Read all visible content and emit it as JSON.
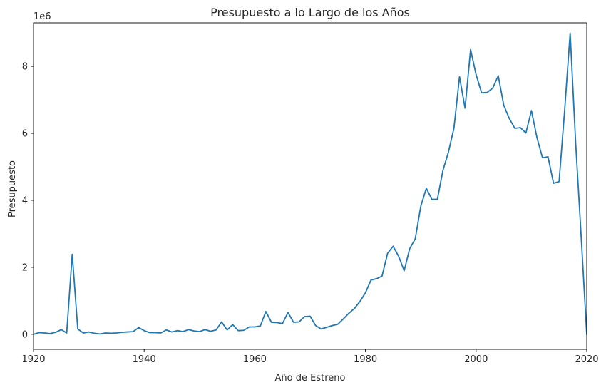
{
  "chart_data": {
    "type": "line",
    "title": "Presupuesto a lo Largo de los Años",
    "xlabel": "Año de Estreno",
    "ylabel": "Presupuesto",
    "y_offset_label": "1e6",
    "xlim": [
      1920,
      2020
    ],
    "ylim": [
      -0.45,
      9.3
    ],
    "y_multiplier": 1000000,
    "x_ticks": [
      1920,
      1940,
      1960,
      1980,
      2000,
      2020
    ],
    "y_ticks": [
      0,
      2,
      4,
      6,
      8
    ],
    "grid": false,
    "line_color": "#1f77b4",
    "series": [
      {
        "x": [
          1920,
          1921,
          1922,
          1923,
          1924,
          1925,
          1926,
          1927,
          1928,
          1929,
          1930,
          1931,
          1932,
          1933,
          1934,
          1935,
          1936,
          1937,
          1938,
          1939,
          1940,
          1941,
          1942,
          1943,
          1944,
          1945,
          1946,
          1947,
          1948,
          1949,
          1950,
          1951,
          1952,
          1953,
          1954,
          1955,
          1956,
          1957,
          1958,
          1959,
          1960,
          1961,
          1962,
          1963,
          1964,
          1965,
          1966,
          1967,
          1968,
          1969,
          1970,
          1971,
          1972,
          1973,
          1974,
          1975,
          1976,
          1977,
          1978,
          1979,
          1980,
          1981,
          1982,
          1983,
          1984,
          1985,
          1986,
          1987,
          1988,
          1989,
          1990,
          1991,
          1992,
          1993,
          1994,
          1995,
          1996,
          1997,
          1998,
          1999,
          2000,
          2001,
          2002,
          2003,
          2004,
          2005,
          2006,
          2007,
          2008,
          2009,
          2010,
          2011,
          2012,
          2013,
          2014,
          2015,
          2016,
          2017,
          2018,
          2019,
          2020
        ],
        "values": [
          0.0,
          0.05,
          0.04,
          0.02,
          0.06,
          0.14,
          0.04,
          2.39,
          0.16,
          0.04,
          0.07,
          0.03,
          0.01,
          0.04,
          0.03,
          0.04,
          0.06,
          0.07,
          0.08,
          0.2,
          0.11,
          0.05,
          0.05,
          0.04,
          0.13,
          0.07,
          0.11,
          0.08,
          0.14,
          0.1,
          0.08,
          0.14,
          0.09,
          0.13,
          0.37,
          0.13,
          0.29,
          0.11,
          0.12,
          0.22,
          0.22,
          0.25,
          0.68,
          0.36,
          0.35,
          0.32,
          0.65,
          0.36,
          0.37,
          0.53,
          0.54,
          0.26,
          0.16,
          0.21,
          0.26,
          0.3,
          0.46,
          0.63,
          0.77,
          0.98,
          1.24,
          1.62,
          1.66,
          1.74,
          2.42,
          2.63,
          2.33,
          1.9,
          2.56,
          2.85,
          3.82,
          4.36,
          4.03,
          4.03,
          4.89,
          5.44,
          6.16,
          7.69,
          6.75,
          8.5,
          7.75,
          7.21,
          7.22,
          7.35,
          7.72,
          6.84,
          6.44,
          6.15,
          6.17,
          6.01,
          6.68,
          5.87,
          5.27,
          5.3,
          4.51,
          4.56,
          6.68,
          8.99,
          5.7,
          2.9,
          0.0
        ]
      }
    ]
  }
}
